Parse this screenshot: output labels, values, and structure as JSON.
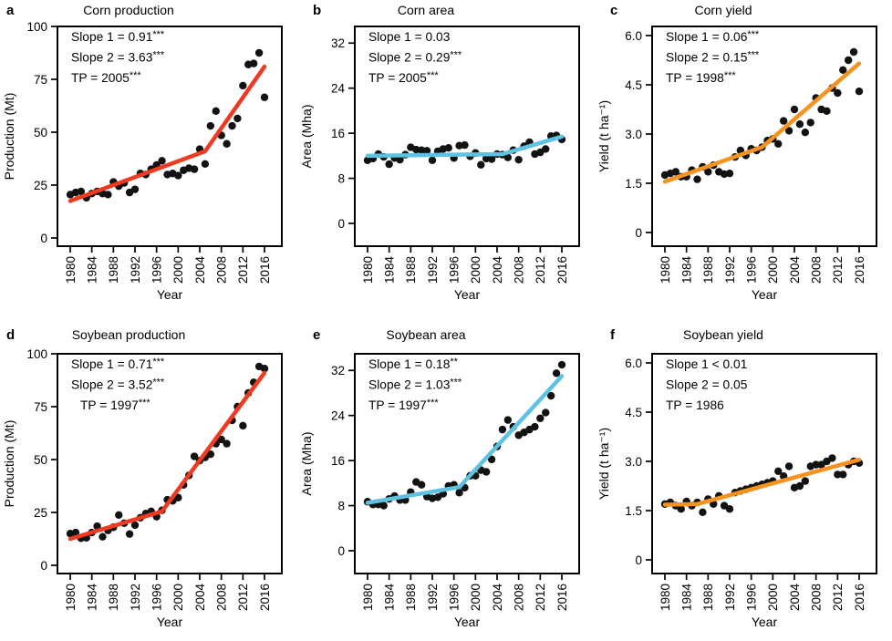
{
  "colors": {
    "background": "#ffffff",
    "point": "#121212",
    "axis": "#000000",
    "production_line": "#ee3a21",
    "area_line": "#5ec2e3",
    "yield_line": "#f6921e"
  },
  "chart_data": {
    "type": "scatter",
    "xlabel": "Year",
    "x_ticks": [
      1980,
      1984,
      1988,
      1992,
      1996,
      2000,
      2004,
      2008,
      2012,
      2016
    ],
    "xlim": [
      1978,
      2018
    ],
    "x": [
      1980,
      1981,
      1982,
      1983,
      1984,
      1985,
      1986,
      1987,
      1988,
      1989,
      1990,
      1991,
      1992,
      1993,
      1994,
      1995,
      1996,
      1997,
      1998,
      1999,
      2000,
      2001,
      2002,
      2003,
      2004,
      2005,
      2006,
      2007,
      2008,
      2009,
      2010,
      2011,
      2012,
      2013,
      2014,
      2015,
      2016
    ],
    "panels": [
      {
        "letter": "a",
        "title": "Corn production",
        "ylabel": "Production (Mt)",
        "y_tick_labels": [
          "0",
          "25",
          "50",
          "75",
          "100"
        ],
        "ylim": [
          0,
          104
        ],
        "annotations": [
          "Slope 1 = 0.91***",
          "Slope 2 = 3.63***",
          "TP = 2005***"
        ],
        "line_color": "#ee3a21",
        "trend": [
          [
            1980,
            17.5
          ],
          [
            2005,
            41
          ],
          [
            2016,
            81
          ]
        ],
        "values": [
          20.5,
          21.5,
          22,
          19,
          21,
          22,
          21,
          20.5,
          26.5,
          24.5,
          26,
          21.5,
          23,
          30.5,
          30,
          32.5,
          34.5,
          36.5,
          30,
          30.5,
          29.5,
          32,
          33,
          32.5,
          42,
          35,
          53,
          60,
          48.5,
          44.5,
          53,
          56.5,
          72,
          82,
          82.5,
          87.5,
          66.5
        ]
      },
      {
        "letter": "b",
        "title": "Corn area",
        "ylabel": "Area (Mha)",
        "y_tick_labels": [
          "0",
          "8",
          "16",
          "24",
          "32"
        ],
        "ylim": [
          0,
          34
        ],
        "annotations": [
          "Slope 1 = 0.03",
          "Slope 2 = 0.29***",
          "TP = 2005***"
        ],
        "line_color": "#5ec2e3",
        "trend": [
          [
            1980,
            12.0
          ],
          [
            2005,
            12.3
          ],
          [
            2016,
            15.4
          ]
        ],
        "values": [
          11.2,
          11.5,
          12.3,
          11.8,
          10.5,
          11.6,
          11.3,
          12.2,
          13.5,
          13.1,
          13.0,
          12.9,
          11.2,
          12.8,
          13.2,
          13.4,
          11.6,
          13.8,
          13.9,
          11.9,
          12.5,
          10.4,
          11.5,
          11.4,
          12.3,
          12.2,
          11.7,
          13.0,
          11.3,
          13.7,
          14.4,
          12.3,
          12.6,
          13.2,
          15.5,
          15.6,
          14.9
        ]
      },
      {
        "letter": "c",
        "title": "Corn yield",
        "ylabel": "Yield (t ha⁻¹)",
        "y_tick_labels": [
          "0",
          "1.5",
          "3.0",
          "4.5",
          "6.0"
        ],
        "ylim": [
          0,
          6.3
        ],
        "annotations": [
          "Slope 1 = 0.06***",
          "Slope 2 = 0.15***",
          "TP = 1998***"
        ],
        "line_color": "#f6921e",
        "trend": [
          [
            1980,
            1.55
          ],
          [
            1998,
            2.6
          ],
          [
            2016,
            5.15
          ]
        ],
        "values": [
          1.75,
          1.8,
          1.85,
          1.7,
          1.7,
          1.9,
          1.62,
          2.0,
          1.85,
          2.05,
          1.85,
          1.78,
          1.8,
          2.3,
          2.5,
          2.35,
          2.55,
          2.5,
          2.6,
          2.8,
          2.85,
          2.7,
          3.4,
          3.1,
          3.75,
          3.3,
          3.05,
          3.35,
          4.1,
          3.75,
          3.7,
          4.4,
          4.25,
          4.95,
          5.25,
          5.5,
          4.3
        ]
      },
      {
        "letter": "d",
        "title": "Soybean production",
        "ylabel": "Production (Mt)",
        "y_tick_labels": [
          "0",
          "25",
          "50",
          "75",
          "100"
        ],
        "ylim": [
          0,
          104
        ],
        "annotations": [
          "Slope 1 = 0.71***",
          "Slope 2 = 3.52***",
          "TP = 1997***"
        ],
        "annotation_indent_last": true,
        "line_color": "#ee3a21",
        "trend": [
          [
            1980,
            12.5
          ],
          [
            1997,
            25.5
          ],
          [
            2016,
            91
          ]
        ],
        "values": [
          15,
          15.5,
          12.8,
          13,
          15.5,
          18.5,
          13.5,
          16.5,
          18,
          23.8,
          19.9,
          14.8,
          19,
          22.5,
          24.5,
          25.5,
          23,
          26,
          31,
          30.5,
          32,
          38,
          42.5,
          51.5,
          49.5,
          51,
          52.5,
          57.5,
          59.5,
          57.5,
          68.5,
          75,
          66,
          81.5,
          86.5,
          94,
          93
        ]
      },
      {
        "letter": "e",
        "title": "Soybean area",
        "ylabel": "Area (Mha)",
        "y_tick_labels": [
          "0",
          "8",
          "16",
          "24",
          "32"
        ],
        "ylim": [
          0,
          34
        ],
        "annotations": [
          "Slope 1 = 0.18**",
          "Slope 2 = 1.03***",
          "TP = 1997***"
        ],
        "line_color": "#5ec2e3",
        "trend": [
          [
            1980,
            8.5
          ],
          [
            1997,
            11.3
          ],
          [
            2016,
            31
          ]
        ],
        "values": [
          8.7,
          8.2,
          8.2,
          8.0,
          9.2,
          9.7,
          9.0,
          9.0,
          10.4,
          12.2,
          11.7,
          9.6,
          9.3,
          9.5,
          10.1,
          11.5,
          11.7,
          10.3,
          11.2,
          13.3,
          13.3,
          14.3,
          14.0,
          16.2,
          18.5,
          21.5,
          23.2,
          22.0,
          20.5,
          21.0,
          21.5,
          22.0,
          23.5,
          24.5,
          27.5,
          31.5,
          33.0
        ]
      },
      {
        "letter": "f",
        "title": "Soybean yield",
        "ylabel": "Yield (t ha⁻¹)",
        "y_tick_labels": [
          "0",
          "1.5",
          "3.0",
          "4.5",
          "6.0"
        ],
        "ylim": [
          0,
          6.3
        ],
        "annotations": [
          "Slope 1 < 0.01",
          "Slope 2 = 0.05",
          "TP = 1986"
        ],
        "line_color": "#f6921e",
        "trend": [
          [
            1980,
            1.68
          ],
          [
            1986,
            1.7
          ],
          [
            2016,
            3.05
          ]
        ],
        "values": [
          1.7,
          1.75,
          1.65,
          1.55,
          1.78,
          1.65,
          1.75,
          1.45,
          1.85,
          1.7,
          1.95,
          1.65,
          1.55,
          2.05,
          2.1,
          2.15,
          2.2,
          2.25,
          2.3,
          2.35,
          2.4,
          2.7,
          2.55,
          2.85,
          2.2,
          2.25,
          2.4,
          2.85,
          2.9,
          2.9,
          3.0,
          3.1,
          2.6,
          2.6,
          2.9,
          3.0,
          2.95
        ]
      }
    ]
  }
}
